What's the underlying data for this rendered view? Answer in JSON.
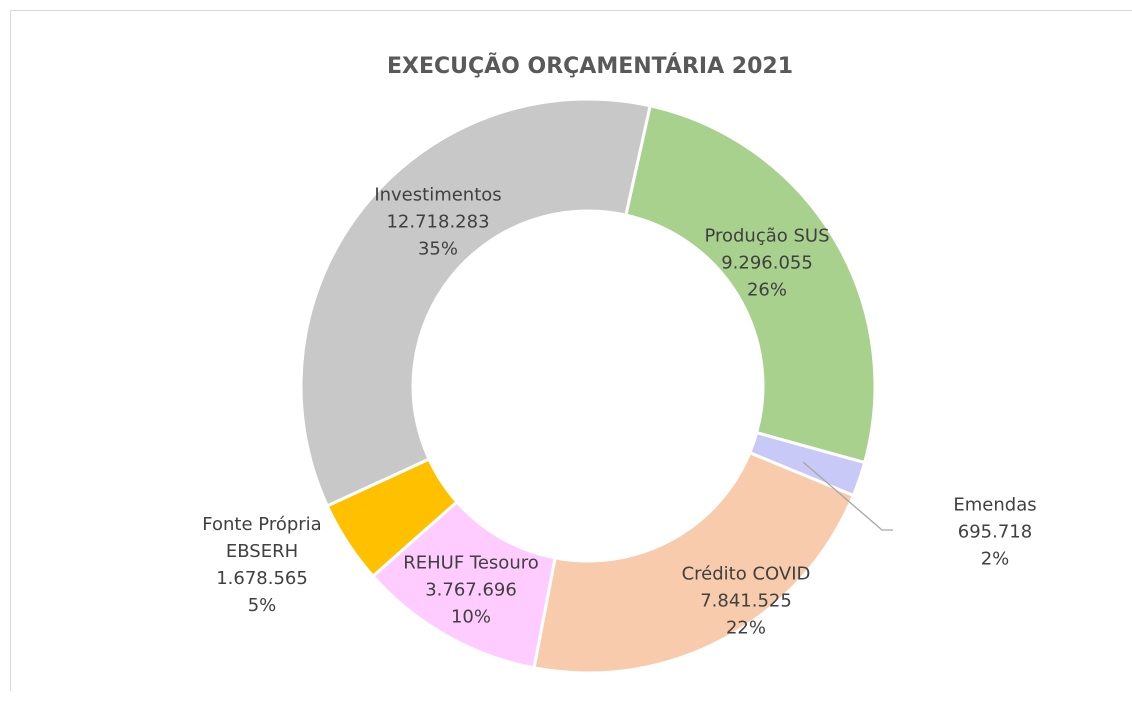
{
  "chart_data": {
    "type": "donut",
    "title": "EXECUÇÃO ORÇAMENTÁRIA 2021",
    "categories": [
      "Produção SUS",
      "Emendas",
      "Crédito COVID",
      "REHUF Tesouro",
      "Fonte Própria EBSERH",
      "Investimentos"
    ],
    "values": [
      9296055,
      695718,
      7841525,
      3767696,
      1678565,
      12718283
    ],
    "value_labels": [
      "9.296.055",
      "695.718",
      "7.841.525",
      "3.767.696",
      "1.678.565",
      "12.718.283"
    ],
    "percent_labels": [
      "26%",
      "2%",
      "22%",
      "10%",
      "5%",
      "35%"
    ],
    "colors": [
      "#a9d18e",
      "#c9c9f7",
      "#f8cbad",
      "#ffccff",
      "#ffc000",
      "#c8c8c8"
    ]
  }
}
